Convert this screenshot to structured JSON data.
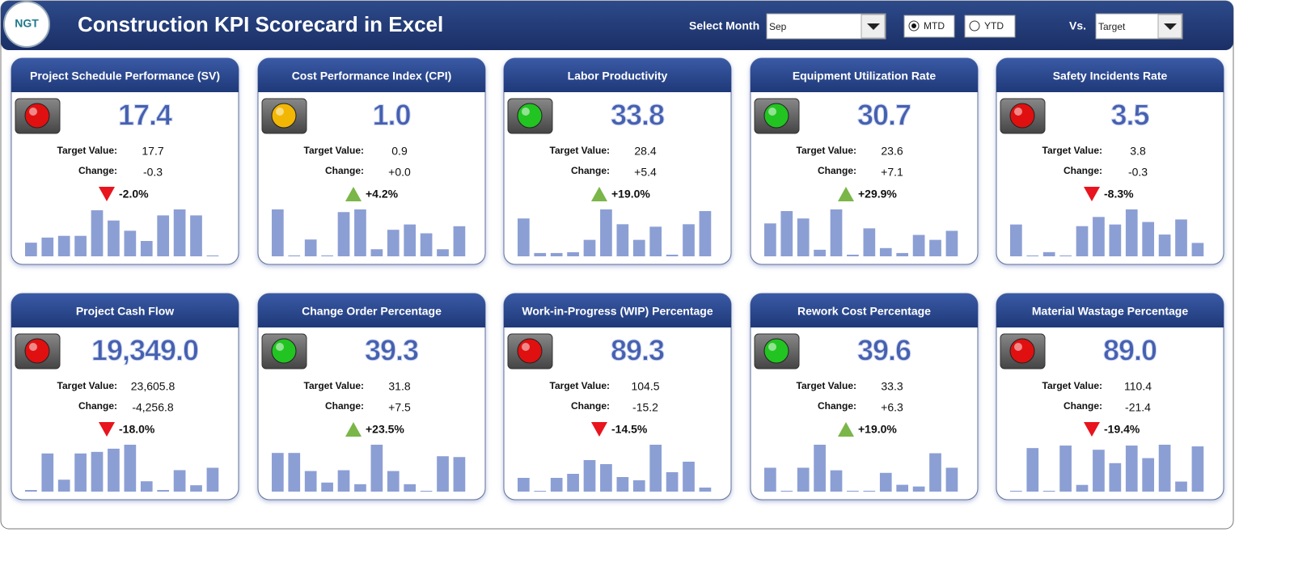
{
  "header": {
    "logo": "NGT",
    "title": "Construction KPI Scorecard in Excel",
    "month_label": "Select Month",
    "month": "Sep",
    "modes": [
      "MTD",
      "YTD"
    ],
    "mode_selected": 0,
    "vs_label": "Vs.",
    "vs": "Target"
  },
  "labels": {
    "target": "Target Value:",
    "change": "Change:"
  },
  "cards": [
    {
      "title": "Project Schedule Performance (SV)",
      "value": "17.4",
      "target": "17.7",
      "change": "-0.3",
      "pct": "-2.0%",
      "light": "#e01010",
      "arrow": "down",
      "spark": [
        16,
        22,
        24,
        24,
        54,
        42,
        30,
        18,
        48,
        55,
        48,
        1
      ]
    },
    {
      "title": "Cost Performance Index (CPI)",
      "value": "1.0",
      "target": "0.9",
      "change": "+0.0",
      "pct": "+4.2%",
      "light": "#f2b705",
      "arrow": "up",
      "spark": [
        53,
        1,
        19,
        1,
        50,
        53,
        8,
        30,
        36,
        26,
        8,
        34
      ]
    },
    {
      "title": "Labor Productivity",
      "value": "33.8",
      "target": "28.4",
      "change": "+5.4",
      "pct": "+19.0%",
      "light": "#22c422",
      "arrow": "up",
      "spark": [
        46,
        4,
        4,
        5,
        20,
        57,
        39,
        20,
        36,
        2,
        39,
        55
      ]
    },
    {
      "title": "Equipment Utilization Rate",
      "value": "30.7",
      "target": "23.6",
      "change": "+7.1",
      "pct": "+29.9%",
      "light": "#22c422",
      "arrow": "up",
      "spark": [
        40,
        55,
        46,
        8,
        57,
        2,
        34,
        10,
        4,
        26,
        20,
        31
      ]
    },
    {
      "title": "Safety Incidents Rate",
      "value": "3.5",
      "target": "3.8",
      "change": "-0.3",
      "pct": "-8.3%",
      "light": "#e01010",
      "arrow": "down",
      "spark": [
        38,
        1,
        5,
        1,
        36,
        47,
        38,
        56,
        41,
        26,
        44,
        16
      ]
    },
    {
      "title": "Project Cash Flow",
      "value": "19,349.0",
      "target": "23,605.8",
      "change": "-4,256.8",
      "pct": "-18.0%",
      "light": "#e01010",
      "arrow": "down",
      "spark": [
        2,
        48,
        15,
        48,
        50,
        54,
        59,
        13,
        2,
        27,
        8,
        30
      ]
    },
    {
      "title": "Change Order Percentage",
      "value": "39.3",
      "target": "31.8",
      "change": "+7.5",
      "pct": "+23.5%",
      "light": "#22c422",
      "arrow": "up",
      "spark": [
        47,
        47,
        25,
        11,
        26,
        9,
        57,
        25,
        9,
        1,
        43,
        42
      ]
    },
    {
      "title": "Work-in-Progress (WIP) Percentage",
      "value": "89.3",
      "target": "104.5",
      "change": "-15.2",
      "pct": "-14.5%",
      "light": "#e01010",
      "arrow": "down",
      "spark": [
        17,
        1,
        17,
        22,
        39,
        34,
        18,
        14,
        58,
        24,
        37,
        5
      ]
    },
    {
      "title": "Rework Cost Percentage",
      "value": "39.6",
      "target": "33.3",
      "change": "+6.3",
      "pct": "+19.0%",
      "light": "#22c422",
      "arrow": "up",
      "spark": [
        28,
        1,
        28,
        55,
        25,
        1,
        1,
        22,
        8,
        6,
        45,
        28
      ]
    },
    {
      "title": "Material Wastage Percentage",
      "value": "89.0",
      "target": "110.4",
      "change": "-21.4",
      "pct": "-19.4%",
      "light": "#e01010",
      "arrow": "down",
      "spark": [
        1,
        52,
        1,
        55,
        8,
        50,
        34,
        55,
        40,
        56,
        12,
        54
      ]
    }
  ]
}
